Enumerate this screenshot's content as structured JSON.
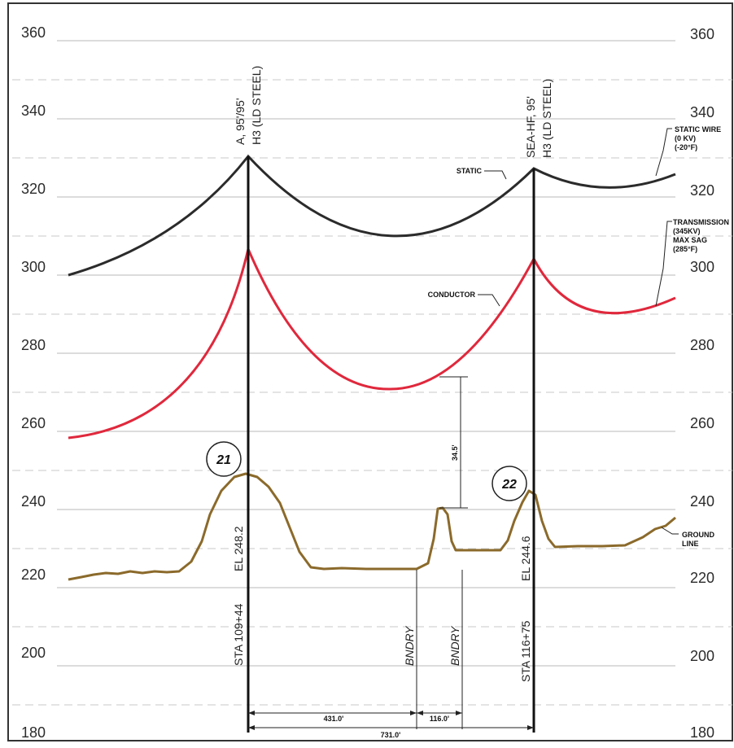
{
  "elevation_labels": [
    "360",
    "340",
    "320",
    "300",
    "280",
    "260",
    "240",
    "220",
    "200",
    "180"
  ],
  "structures": [
    {
      "number": "21",
      "type_line1": "A, 95'/95'",
      "type_line2": "H3 (LD STEEL)",
      "elevation": "EL 248.2",
      "station": "STA 109+44"
    },
    {
      "number": "22",
      "type_line1": "SEA-HF, 95'",
      "type_line2": "H3 (LD STEEL)",
      "elevation": "EL 244.6",
      "station": "STA 116+75"
    }
  ],
  "callouts": {
    "static_wire": [
      "STATIC WIRE",
      "(0 KV)",
      "(-20°F)"
    ],
    "transmission": [
      "TRANSMISSION",
      "(345KV)",
      "MAX SAG",
      "(285°F)"
    ],
    "static": "STATIC",
    "conductor": "CONDUCTOR",
    "ground_line": [
      "GROUND",
      "LINE"
    ]
  },
  "boundaries": [
    "BNDRY",
    "BNDRY"
  ],
  "dimensions": {
    "clearance": "34.5'",
    "span_a": "431.0'",
    "span_b": "116.0'",
    "span_total": "731.0'"
  },
  "colors": {
    "static_wire": "#2b2b2b",
    "conductor": "#e0283c",
    "ground": "#8b6a2b",
    "structure": "#111111"
  }
}
